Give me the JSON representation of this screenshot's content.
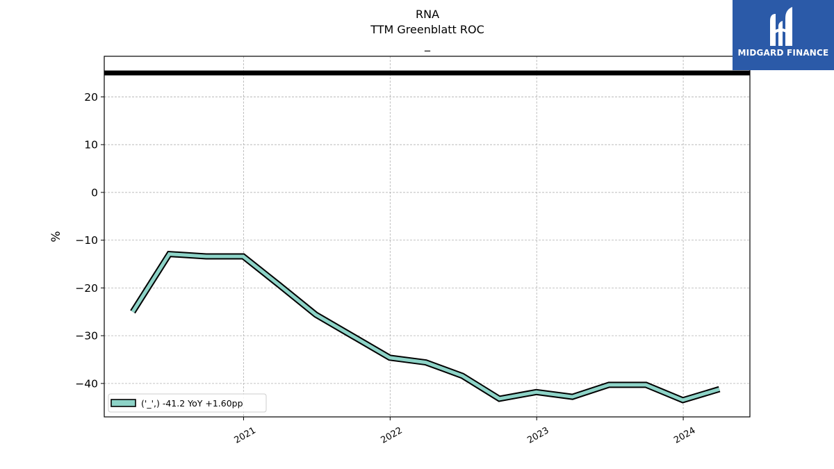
{
  "header": {
    "title_line1": "RNA",
    "title_line2": "TTM Greenblatt ROC",
    "title_line3": "_"
  },
  "logo": {
    "text": "MIDGARD FINANCE",
    "background": "#2b5aa8"
  },
  "chart_data": {
    "type": "line",
    "title": "RNA\nTTM Greenblatt ROC\n_",
    "xlabel": "",
    "ylabel": "%",
    "xlim": [
      "2020-01-20",
      "2024-06-15"
    ],
    "ylim": [
      -47,
      28.5
    ],
    "x_ticks": [
      "2021",
      "2022",
      "2023",
      "2024"
    ],
    "y_ticks": [
      20,
      10,
      0,
      -10,
      -20,
      -30,
      -40
    ],
    "y_tick_labels": [
      "20",
      "10",
      "0",
      "−10",
      "−20",
      "−30",
      "−40"
    ],
    "grid": true,
    "legend_position": "lower-left",
    "reference_line": {
      "y": 25,
      "color": "#000000"
    },
    "series": [
      {
        "name": "('_',) -41.2 YoY +1.60pp",
        "color": "#8dd3c7",
        "edge_color": "#000000",
        "x": [
          "2020-03-31",
          "2020-06-30",
          "2020-09-30",
          "2020-12-31",
          "2021-03-31",
          "2021-06-30",
          "2021-09-30",
          "2021-12-31",
          "2022-03-31",
          "2022-06-30",
          "2022-09-30",
          "2022-12-31",
          "2023-03-31",
          "2023-06-30",
          "2023-09-30",
          "2023-12-31",
          "2024-03-31"
        ],
        "values": [
          -25.0,
          -12.9,
          -13.4,
          -13.4,
          -19.4,
          -25.6,
          -30.1,
          -34.6,
          -35.6,
          -38.4,
          -43.2,
          -41.8,
          -42.8,
          -40.3,
          -40.3,
          -43.5,
          -41.2
        ]
      }
    ]
  }
}
